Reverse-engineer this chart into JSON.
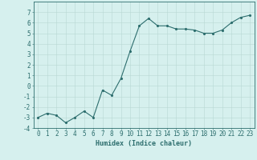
{
  "x": [
    0,
    1,
    2,
    3,
    4,
    5,
    6,
    7,
    8,
    9,
    10,
    11,
    12,
    13,
    14,
    15,
    16,
    17,
    18,
    19,
    20,
    21,
    22,
    23
  ],
  "y": [
    -3.0,
    -2.6,
    -2.8,
    -3.5,
    -3.0,
    -2.4,
    -3.0,
    -0.4,
    -0.9,
    0.7,
    3.3,
    5.7,
    6.4,
    5.7,
    5.7,
    5.4,
    5.4,
    5.3,
    5.0,
    5.0,
    5.3,
    6.0,
    6.5,
    6.7
  ],
  "xlabel": "Humidex (Indice chaleur)",
  "ylim": [
    -4,
    8
  ],
  "xlim": [
    -0.5,
    23.5
  ],
  "yticks": [
    -4,
    -3,
    -2,
    -1,
    0,
    1,
    2,
    3,
    4,
    5,
    6,
    7
  ],
  "xticks": [
    0,
    1,
    2,
    3,
    4,
    5,
    6,
    7,
    8,
    9,
    10,
    11,
    12,
    13,
    14,
    15,
    16,
    17,
    18,
    19,
    20,
    21,
    22,
    23
  ],
  "line_color": "#2d6e6e",
  "marker_color": "#2d6e6e",
  "bg_color": "#d6f0ee",
  "grid_color": "#b8d8d4",
  "axis_color": "#2d6e6e",
  "tick_color": "#2d6e6e",
  "label_color": "#2d6e6e",
  "xlabel_fontsize": 6.0,
  "tick_fontsize": 5.5
}
